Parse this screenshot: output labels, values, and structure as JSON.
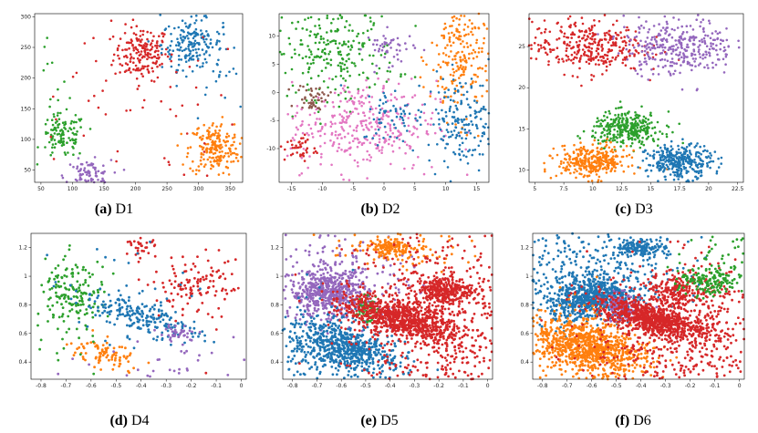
{
  "figure": {
    "caption_prefix": [
      "(a)",
      "(b)",
      "(c)",
      "(d)",
      "(e)",
      "(f)"
    ]
  },
  "palette": {
    "blue": "#1f77b4",
    "orange": "#ff7f0e",
    "green": "#2ca02c",
    "red": "#d62728",
    "purple": "#9467bd",
    "brown": "#8c564b",
    "pink": "#e377c2"
  },
  "chart_data": [
    {
      "type": "scatter",
      "title": "D1",
      "xlim": [
        40,
        370
      ],
      "ylim": [
        30,
        305
      ],
      "xticks": [
        50,
        100,
        150,
        200,
        250,
        300,
        350
      ],
      "yticks": [
        50,
        100,
        150,
        200,
        250,
        300
      ],
      "clusters": [
        {
          "color": "red",
          "center": [
            210,
            240
          ],
          "spread": [
            22,
            22
          ],
          "n": 180
        },
        {
          "color": "blue",
          "center": [
            290,
            255
          ],
          "spread": [
            24,
            20
          ],
          "n": 180
        },
        {
          "color": "green",
          "center": [
            85,
            105
          ],
          "spread": [
            18,
            18
          ],
          "n": 110
        },
        {
          "color": "purple",
          "center": [
            125,
            40
          ],
          "spread": [
            18,
            13
          ],
          "n": 110
        },
        {
          "color": "orange",
          "center": [
            325,
            85
          ],
          "spread": [
            20,
            22
          ],
          "n": 200
        },
        {
          "color": "red",
          "center": [
            180,
            170
          ],
          "spread": [
            90,
            70
          ],
          "n": 60
        },
        {
          "color": "blue",
          "center": [
            320,
            220
          ],
          "spread": [
            40,
            60
          ],
          "n": 25
        },
        {
          "color": "green",
          "center": [
            70,
            170
          ],
          "spread": [
            15,
            50
          ],
          "n": 15
        }
      ]
    },
    {
      "type": "scatter",
      "title": "D2",
      "xlim": [
        -17,
        17
      ],
      "ylim": [
        -16,
        14
      ],
      "xticks": [
        -15,
        -10,
        -5,
        0,
        5,
        10,
        15
      ],
      "yticks": [
        -10,
        -5,
        0,
        5,
        10
      ],
      "clusters": [
        {
          "color": "green",
          "center": [
            -8,
            7
          ],
          "spread": [
            5,
            4
          ],
          "n": 240
        },
        {
          "color": "purple",
          "center": [
            1,
            8
          ],
          "spread": [
            2,
            1.5
          ],
          "n": 50
        },
        {
          "color": "orange",
          "center": [
            12.5,
            6
          ],
          "spread": [
            2.5,
            5.5
          ],
          "n": 220
        },
        {
          "color": "brown",
          "center": [
            -11.5,
            -1
          ],
          "spread": [
            1.3,
            1.2
          ],
          "n": 45
        },
        {
          "color": "pink",
          "center": [
            -3.5,
            -6
          ],
          "spread": [
            6,
            4
          ],
          "n": 360
        },
        {
          "color": "blue",
          "center": [
            1.5,
            -4
          ],
          "spread": [
            2.5,
            2.5
          ],
          "n": 60
        },
        {
          "color": "blue",
          "center": [
            12.5,
            -5
          ],
          "spread": [
            2.8,
            4
          ],
          "n": 180
        },
        {
          "color": "red",
          "center": [
            -13.5,
            -10
          ],
          "spread": [
            1.3,
            1.2
          ],
          "n": 40
        }
      ]
    },
    {
      "type": "scatter",
      "title": "D3",
      "xlim": [
        4.5,
        23
      ],
      "ylim": [
        8.5,
        29
      ],
      "xticks": [
        5.0,
        7.5,
        10.0,
        12.5,
        15.0,
        17.5,
        20.0,
        22.5
      ],
      "yticks": [
        10,
        15,
        20,
        25
      ],
      "clusters": [
        {
          "color": "red",
          "center": [
            9.5,
            25
          ],
          "spread": [
            2.4,
            1.6
          ],
          "n": 330
        },
        {
          "color": "purple",
          "center": [
            17.5,
            25
          ],
          "spread": [
            2.4,
            1.7
          ],
          "n": 330
        },
        {
          "color": "green",
          "center": [
            13,
            15
          ],
          "spread": [
            1.5,
            1.0
          ],
          "n": 330
        },
        {
          "color": "orange",
          "center": [
            10,
            11
          ],
          "spread": [
            1.5,
            1.0
          ],
          "n": 330
        },
        {
          "color": "blue",
          "center": [
            17.5,
            11
          ],
          "spread": [
            1.4,
            1.0
          ],
          "n": 330
        }
      ]
    },
    {
      "type": "scatter",
      "title": "D4",
      "xlim": [
        -0.84,
        0.02
      ],
      "ylim": [
        0.28,
        1.3
      ],
      "xticks": [
        -0.8,
        -0.7,
        -0.6,
        -0.5,
        -0.4,
        -0.3,
        -0.2,
        -0.1,
        0.0
      ],
      "yticks": [
        0.4,
        0.6,
        0.8,
        1.0,
        1.2
      ],
      "clusters": [
        {
          "color": "green",
          "center": [
            -0.66,
            0.88
          ],
          "spread": [
            0.06,
            0.1
          ],
          "n": 130
        },
        {
          "color": "blue",
          "center": [
            -0.4,
            0.72
          ],
          "spread": [
            0.13,
            0.05
          ],
          "n": 200,
          "tilt": -0.55
        },
        {
          "color": "orange",
          "center": [
            -0.56,
            0.46
          ],
          "spread": [
            0.08,
            0.04
          ],
          "n": 90,
          "tilt": -0.6
        },
        {
          "color": "red",
          "center": [
            -0.2,
            0.92
          ],
          "spread": [
            0.08,
            0.08
          ],
          "n": 90
        },
        {
          "color": "red",
          "center": [
            -0.4,
            1.2
          ],
          "spread": [
            0.03,
            0.03
          ],
          "n": 30
        },
        {
          "color": "purple",
          "center": [
            -0.25,
            0.6
          ],
          "spread": [
            0.04,
            0.03
          ],
          "n": 40
        },
        {
          "color": "green",
          "center": [
            -0.7,
            0.8
          ],
          "spread": [
            0.1,
            0.3
          ],
          "n": 50
        },
        {
          "color": "blue",
          "center": [
            -0.5,
            0.9
          ],
          "spread": [
            0.2,
            0.2
          ],
          "n": 40
        },
        {
          "color": "red",
          "center": [
            -0.15,
            1.0
          ],
          "spread": [
            0.12,
            0.2
          ],
          "n": 40
        },
        {
          "color": "purple",
          "center": [
            -0.3,
            0.4
          ],
          "spread": [
            0.2,
            0.1
          ],
          "n": 30
        }
      ]
    },
    {
      "type": "scatter",
      "title": "D5",
      "xlim": [
        -0.84,
        0.02
      ],
      "ylim": [
        0.28,
        1.3
      ],
      "xticks": [
        -0.8,
        -0.7,
        -0.6,
        -0.5,
        -0.4,
        -0.3,
        -0.2,
        -0.1,
        0.0
      ],
      "yticks": [
        0.4,
        0.6,
        0.8,
        1.0,
        1.2
      ],
      "clusters": [
        {
          "color": "purple",
          "center": [
            -0.65,
            0.88
          ],
          "spread": [
            0.08,
            0.08
          ],
          "n": 500
        },
        {
          "color": "purple",
          "center": [
            -0.6,
            1.0
          ],
          "spread": [
            0.15,
            0.2
          ],
          "n": 200
        },
        {
          "color": "blue",
          "center": [
            -0.58,
            0.5
          ],
          "spread": [
            0.12,
            0.07
          ],
          "n": 600,
          "tilt": -0.6
        },
        {
          "color": "blue",
          "center": [
            -0.7,
            0.5
          ],
          "spread": [
            0.1,
            0.2
          ],
          "n": 150
        },
        {
          "color": "orange",
          "center": [
            -0.4,
            1.2
          ],
          "spread": [
            0.05,
            0.03
          ],
          "n": 150
        },
        {
          "color": "orange",
          "center": [
            -0.35,
            1.2
          ],
          "spread": [
            0.15,
            0.08
          ],
          "n": 80
        },
        {
          "color": "green",
          "center": [
            -0.5,
            0.77
          ],
          "spread": [
            0.02,
            0.04
          ],
          "n": 60
        },
        {
          "color": "red",
          "center": [
            -0.35,
            0.7
          ],
          "spread": [
            0.13,
            0.06
          ],
          "n": 800,
          "tilt": -0.5
        },
        {
          "color": "red",
          "center": [
            -0.18,
            0.9
          ],
          "spread": [
            0.06,
            0.05
          ],
          "n": 300
        },
        {
          "color": "red",
          "center": [
            -0.2,
            0.7
          ],
          "spread": [
            0.2,
            0.35
          ],
          "n": 700
        }
      ]
    },
    {
      "type": "scatter",
      "title": "D6",
      "xlim": [
        -0.84,
        0.02
      ],
      "ylim": [
        0.28,
        1.3
      ],
      "xticks": [
        -0.8,
        -0.7,
        -0.6,
        -0.5,
        -0.4,
        -0.3,
        -0.2,
        -0.1,
        0.0
      ],
      "yticks": [
        0.4,
        0.6,
        0.8,
        1.0,
        1.2
      ],
      "clusters": [
        {
          "color": "blue",
          "center": [
            -0.6,
            0.85
          ],
          "spread": [
            0.1,
            0.07
          ],
          "n": 700,
          "tilt": 0.5
        },
        {
          "color": "blue",
          "center": [
            -0.6,
            1.05
          ],
          "spread": [
            0.18,
            0.16
          ],
          "n": 300
        },
        {
          "color": "blue",
          "center": [
            -0.4,
            1.2
          ],
          "spread": [
            0.05,
            0.03
          ],
          "n": 150
        },
        {
          "color": "orange",
          "center": [
            -0.6,
            0.5
          ],
          "spread": [
            0.13,
            0.08
          ],
          "n": 800,
          "tilt": -0.6
        },
        {
          "color": "orange",
          "center": [
            -0.7,
            0.5
          ],
          "spread": [
            0.1,
            0.15
          ],
          "n": 150
        },
        {
          "color": "purple",
          "center": [
            -0.48,
            0.78
          ],
          "spread": [
            0.04,
            0.05
          ],
          "n": 120
        },
        {
          "color": "red",
          "center": [
            -0.35,
            0.7
          ],
          "spread": [
            0.12,
            0.05
          ],
          "n": 800,
          "tilt": -0.5
        },
        {
          "color": "red",
          "center": [
            -0.2,
            0.6
          ],
          "spread": [
            0.2,
            0.25
          ],
          "n": 600
        },
        {
          "color": "red",
          "center": [
            -0.25,
            0.9
          ],
          "spread": [
            0.06,
            0.06
          ],
          "n": 200
        },
        {
          "color": "green",
          "center": [
            -0.12,
            0.95
          ],
          "spread": [
            0.06,
            0.05
          ],
          "n": 150
        },
        {
          "color": "green",
          "center": [
            -0.1,
            1.1
          ],
          "spread": [
            0.08,
            0.12
          ],
          "n": 60
        }
      ]
    }
  ]
}
